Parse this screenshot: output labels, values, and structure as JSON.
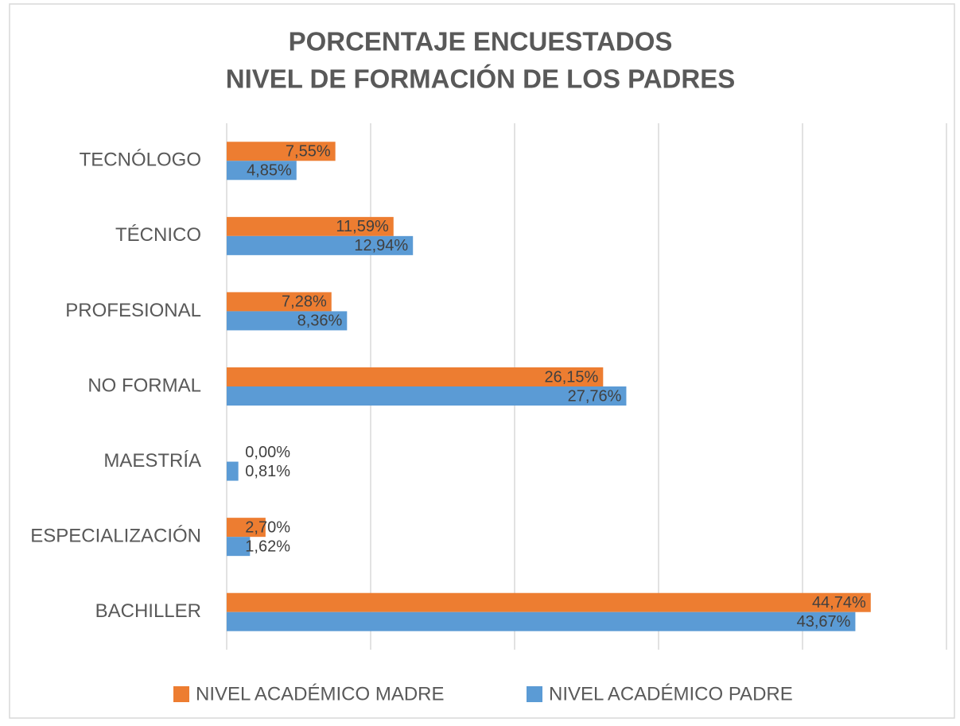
{
  "chart_data": {
    "type": "barh",
    "title": [
      "PORCENTAJE ENCUESTADOS",
      "NIVEL DE FORMACIÓN DE LOS PADRES"
    ],
    "categories": [
      "TECNÓLOGO",
      "TÉCNICO",
      "PROFESIONAL",
      "NO FORMAL",
      "MAESTRÍA",
      "ESPECIALIZACIÓN",
      "BACHILLER"
    ],
    "series": [
      {
        "name": "NIVEL ACADÉMICO MADRE",
        "color": "#ed7d31",
        "values": [
          7.55,
          11.59,
          7.28,
          26.15,
          0.0,
          2.7,
          44.74
        ],
        "value_labels": [
          "7,55%",
          "11,59%",
          "7,28%",
          "26,15%",
          "0,00%",
          "2,70%",
          "44,74%"
        ]
      },
      {
        "name": "NIVEL ACADÉMICO PADRE",
        "color": "#5b9bd5",
        "values": [
          4.85,
          12.94,
          8.36,
          27.76,
          0.81,
          1.62,
          43.67
        ],
        "value_labels": [
          "4,85%",
          "12,94%",
          "8,36%",
          "27,76%",
          "0,81%",
          "1,62%",
          "43,67%"
        ]
      }
    ],
    "xlim": [
      0,
      50
    ],
    "xticks": [
      0,
      10,
      20,
      30,
      40,
      50
    ],
    "grid": true,
    "legend": "bottom"
  }
}
